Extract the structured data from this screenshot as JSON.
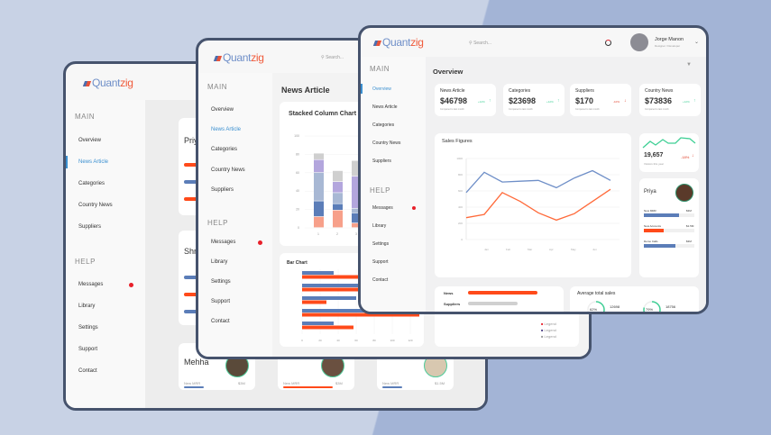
{
  "brand": {
    "logo_a": "Quant",
    "logo_b": "zig",
    "accent": "#f05a3a",
    "blue": "#5b7db8"
  },
  "nav": {
    "main": "MAIN",
    "help": "HELP",
    "items": [
      "Overview",
      "News Article",
      "Categories",
      "Country News",
      "Suppliers"
    ],
    "help_items": [
      "Messages",
      "Library",
      "Settings",
      "Support",
      "Contact"
    ]
  },
  "search": "Search...",
  "back": {
    "people": [
      {
        "name": "Priya",
        "rows": [
          "New MRR",
          "New Accounts",
          "Demo Calls"
        ]
      },
      {
        "name": "Shruti",
        "rows": [
          "New MRR",
          "New Accounts",
          "Demo Calls"
        ]
      },
      {
        "name": "Mehha",
        "rows": [
          "New MRR"
        ],
        "value": "$3M"
      }
    ],
    "bottom_cards": [
      {
        "row": "New MRR",
        "value": "$3M"
      },
      {
        "row": "New MRR",
        "value": "$1.5M"
      }
    ]
  },
  "middle": {
    "title": "News Article",
    "stacked_title": "Stacked Column Chart",
    "stacked_y_ticks": [
      "0",
      "20",
      "40",
      "60",
      "80",
      "100"
    ],
    "stacked_x": [
      "1",
      "2",
      "3"
    ],
    "stacked": [
      [
        12,
        17,
        31,
        14,
        7
      ],
      [
        19,
        7,
        12,
        12,
        12
      ],
      [
        5,
        11,
        5,
        35,
        17
      ]
    ],
    "stack_colors": [
      "#f7a08a",
      "#5b7db8",
      "#a8b8d4",
      "#b3a6dd",
      "#cfcfcf"
    ],
    "bar_title": "Bar Chart",
    "bar_x_ticks": [
      "0",
      "20",
      "40",
      "60",
      "80",
      "100",
      "120"
    ],
    "bar_blue": [
      35,
      95,
      60,
      120,
      35
    ],
    "bar_red": [
      120,
      75,
      27,
      130,
      57
    ],
    "legend": [
      "Legend",
      "Legend",
      "Legend"
    ]
  },
  "front": {
    "user": {
      "name": "Jorge Manon",
      "role": "Designer / Developer"
    },
    "title": "Overview",
    "kpis": [
      {
        "label": "News Article",
        "value": "$46798",
        "change": "+12%",
        "dir": "up",
        "note": "Compared to last month"
      },
      {
        "label": "Categories",
        "value": "$23698",
        "change": "+12%",
        "dir": "up",
        "note": "Compared to last month"
      },
      {
        "label": "Suppliers",
        "value": "$170",
        "change": "-10%",
        "dir": "down",
        "note": "Compared to last month"
      },
      {
        "label": "Country News",
        "value": "$73836",
        "change": "+12%",
        "dir": "up",
        "note": "Compared to last month"
      }
    ],
    "sales_title": "Sales Figures",
    "sales_y": [
      "0",
      "200",
      "400",
      "600",
      "800",
      "1000"
    ],
    "sales_x": [
      "Jan",
      "Feb",
      "Mar",
      "Apr",
      "May",
      "Jun"
    ],
    "sales_blue": [
      580,
      830,
      710,
      720,
      730,
      640,
      760,
      850,
      730
    ],
    "sales_red": [
      270,
      310,
      580,
      470,
      330,
      240,
      320,
      470,
      620
    ],
    "spark": {
      "value": "19,657",
      "change": "-18%",
      "note": "Visitors this year"
    },
    "person": {
      "name": "Priya",
      "rows": [
        {
          "label": "New MRR",
          "value": "$3M",
          "pct": 0.7,
          "color": "#5b7db8"
        },
        {
          "label": "New Accounts",
          "value": "$1.5M",
          "pct": 0.4,
          "color": "#ff4a1a"
        },
        {
          "label": "Demo Calls",
          "value": "$3M",
          "pct": 0.63,
          "color": "#5b7db8"
        }
      ]
    },
    "hbars": [
      {
        "label": "News",
        "pct": 0.55,
        "color": "#ff4a1a"
      },
      {
        "label": "Suppliers",
        "pct": 0.39,
        "color": "#d0d0d0"
      },
      {
        "label": "Categories",
        "pct": 0.69,
        "color": "#5b7db8"
      }
    ],
    "avg_title": "Average total sales",
    "rings": [
      {
        "pct": "62%",
        "value": "12698",
        "label": "News"
      },
      {
        "pct": "79%",
        "value": "18756",
        "label": "Suppliers"
      }
    ]
  }
}
